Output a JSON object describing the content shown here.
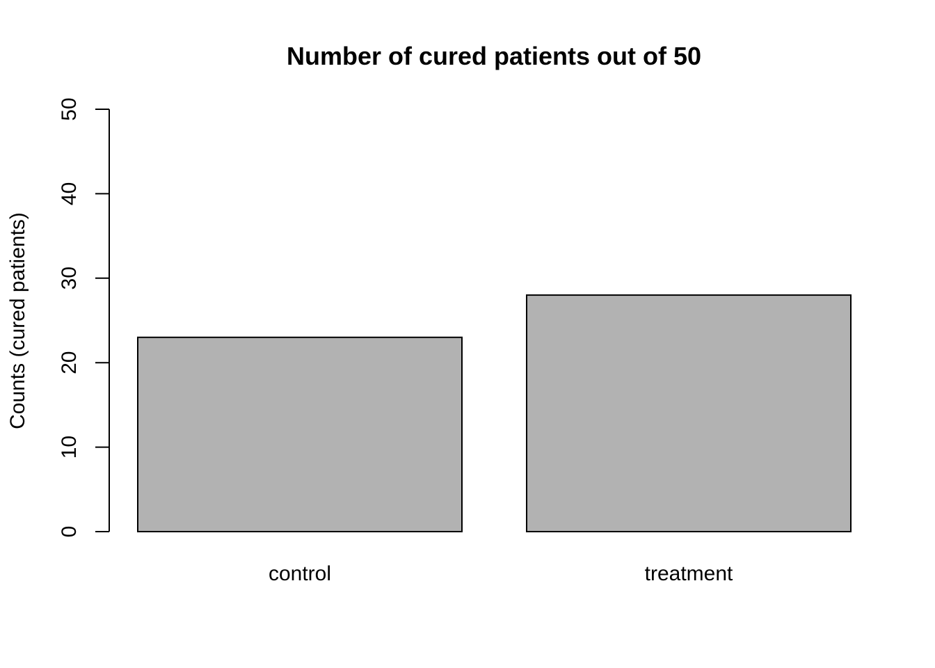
{
  "chart_data": {
    "type": "bar",
    "title": "Number of cured patients out of 50",
    "xlabel": "",
    "ylabel": "Counts (cured patients)",
    "categories": [
      "control",
      "treatment"
    ],
    "values": [
      23,
      28
    ],
    "ylim": [
      0,
      50
    ],
    "yticks": [
      0,
      10,
      20,
      30,
      40,
      50
    ],
    "bar_color": "#b2b2b2",
    "grid": false,
    "legend": "none"
  }
}
